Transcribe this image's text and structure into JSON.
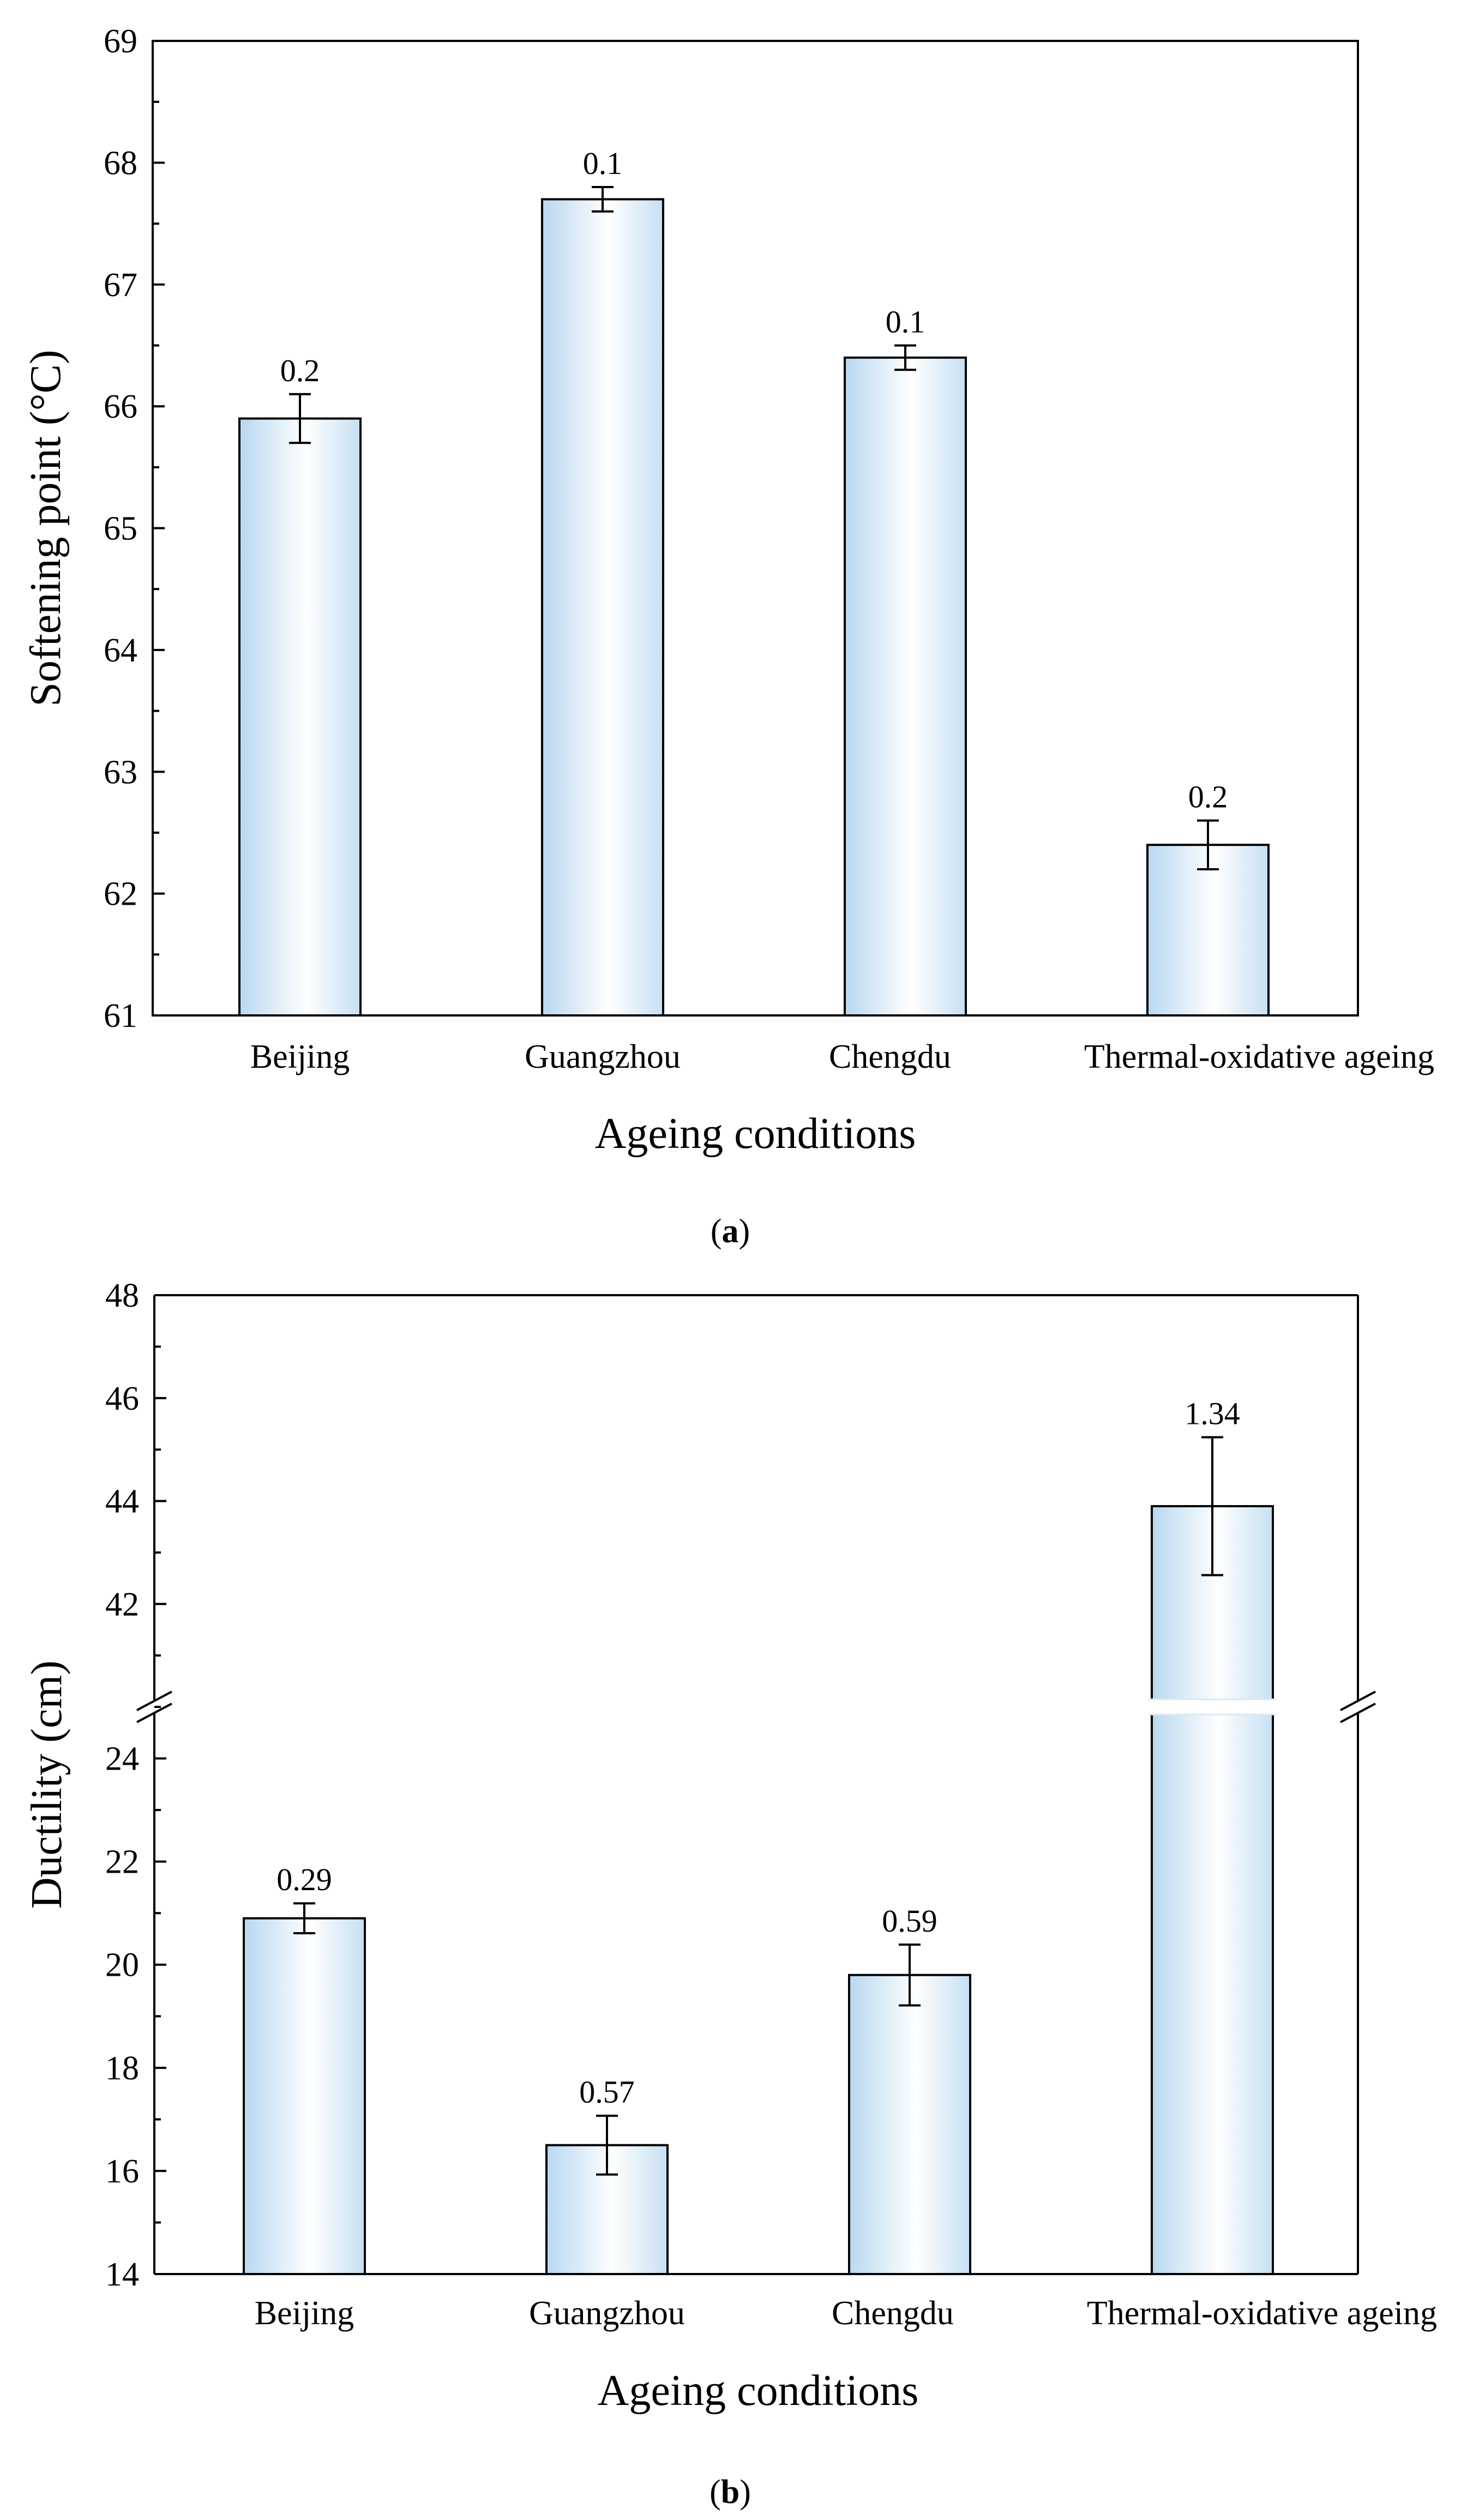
{
  "chart_data": [
    {
      "type": "bar",
      "panel": "a",
      "caption": "a",
      "categories": [
        "Beijing",
        "Guangzhou",
        "Chengdu",
        "Thermal-oxidative ageing"
      ],
      "values": [
        65.9,
        67.7,
        66.4,
        62.4
      ],
      "errors": [
        0.2,
        0.1,
        0.1,
        0.2
      ],
      "error_labels": [
        "0.2",
        "0.1",
        "0.1",
        "0.2"
      ],
      "xlabel": "Ageing conditions",
      "ylabel": "Softening point (°C)",
      "ylim": [
        61,
        69
      ],
      "yticks": [
        "61",
        "62",
        "63",
        "64",
        "65",
        "66",
        "67",
        "68",
        "69"
      ]
    },
    {
      "type": "bar",
      "panel": "b",
      "caption": "b",
      "categories": [
        "Beijing",
        "Guangzhou",
        "Chengdu",
        "Thermal-oxidative ageing"
      ],
      "values": [
        20.9,
        16.5,
        19.8,
        43.9
      ],
      "errors": [
        0.29,
        0.57,
        0.59,
        1.34
      ],
      "error_labels": [
        "0.29",
        "0.57",
        "0.59",
        "1.34"
      ],
      "xlabel": "Ageing conditions",
      "ylabel": "Ductility (cm)",
      "ylim": [
        14,
        48
      ],
      "axis_break": [
        25,
        40
      ],
      "yticks": [
        "14",
        "16",
        "18",
        "20",
        "22",
        "24",
        "42",
        "44",
        "46",
        "48"
      ]
    }
  ]
}
